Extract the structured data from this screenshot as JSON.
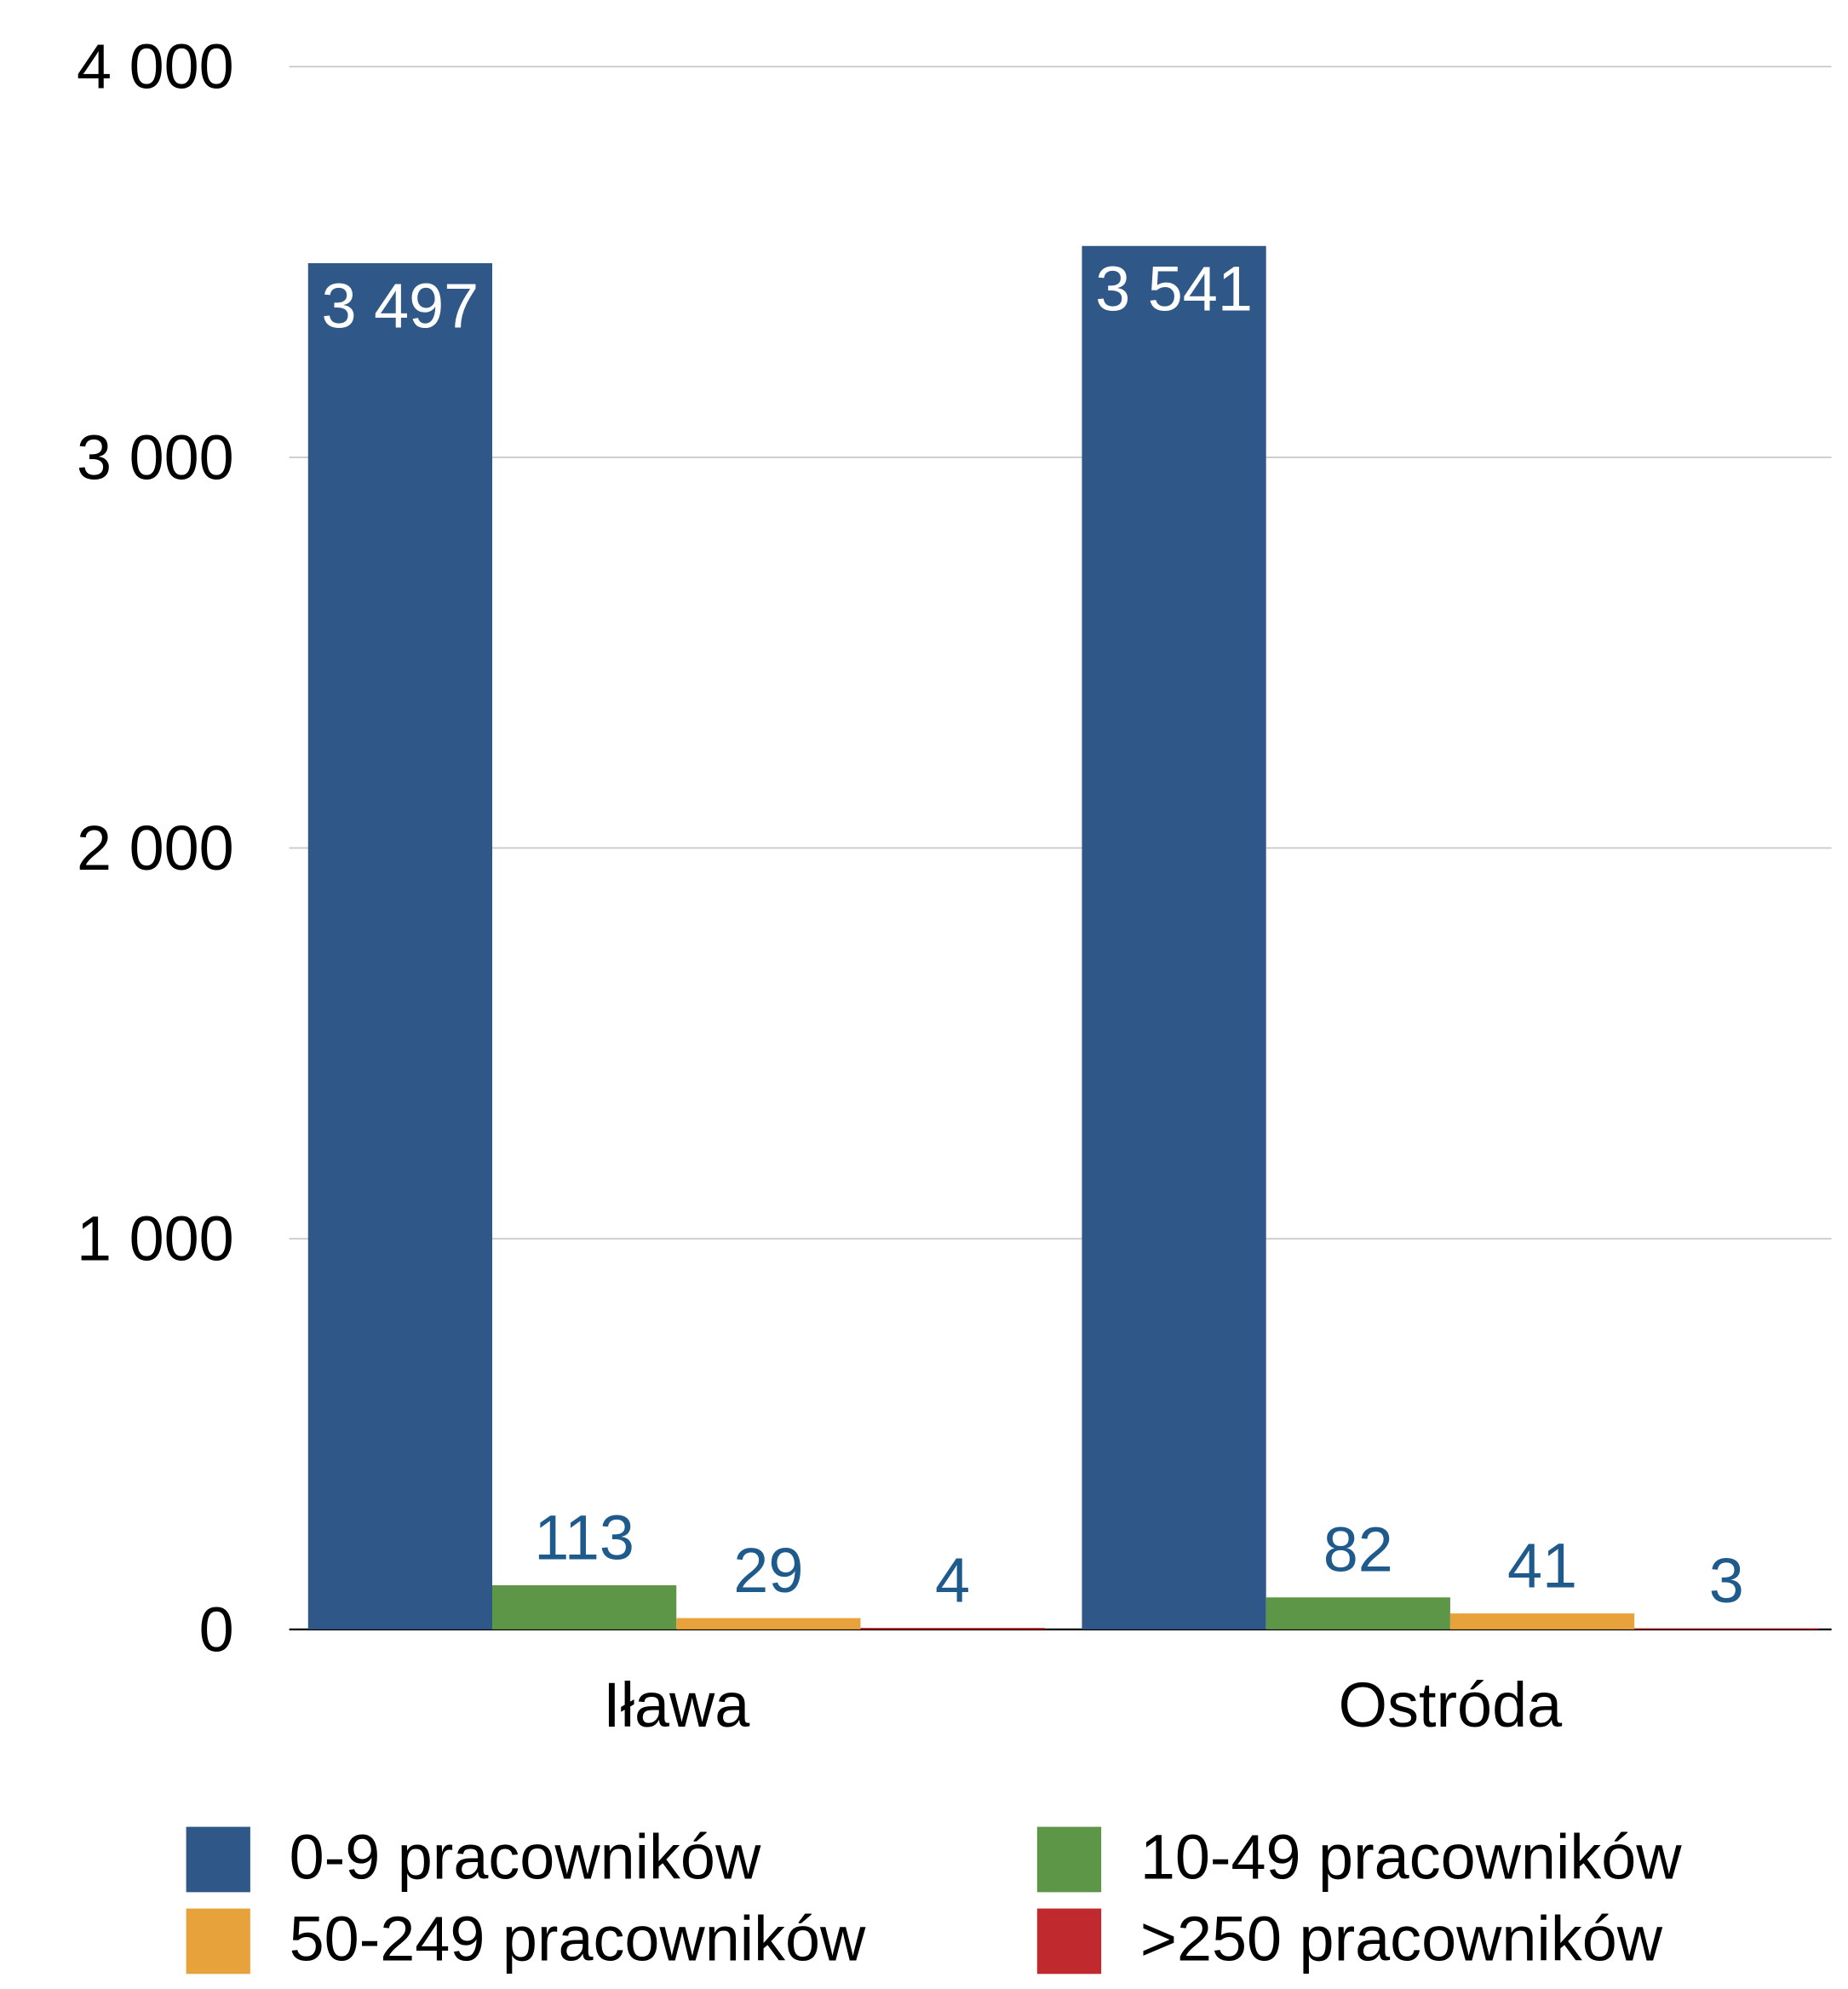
{
  "chart_data": {
    "type": "bar",
    "categories": [
      "Iława",
      "Ostróda"
    ],
    "series": [
      {
        "name": "0-9 pracowników",
        "color": "#2f5889",
        "values": [
          3497,
          3541
        ],
        "value_labels": [
          "3 497",
          "3 541"
        ]
      },
      {
        "name": "10-49 pracowników",
        "color": "#5e9648",
        "values": [
          113,
          82
        ]
      },
      {
        "name": "50-249 pracowników",
        "color": "#e8a23c",
        "values": [
          29,
          41
        ]
      },
      {
        "name": ">250 pracowników",
        "color": "#c0292e",
        "values": [
          4,
          3
        ]
      }
    ],
    "ylim": [
      0,
      4000
    ],
    "yticks": [
      0,
      {
        "value": 1000,
        "label": "1 000"
      },
      {
        "value": 2000,
        "label": "2 000"
      },
      {
        "value": 3000,
        "label": "3 000"
      },
      {
        "value": 4000,
        "label": "4 000"
      }
    ],
    "grid": true,
    "legend": "bottom"
  }
}
